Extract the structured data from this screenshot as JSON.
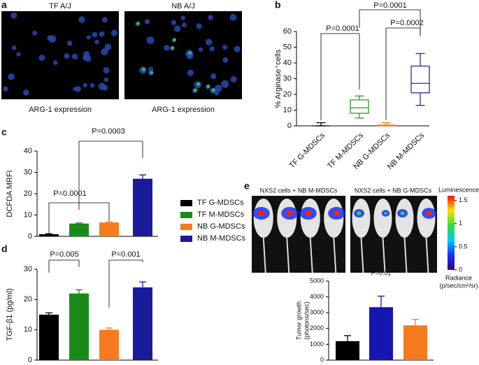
{
  "panel_labels": [
    "a",
    "b",
    "c",
    "d",
    "e"
  ],
  "panel_a": {
    "image_titles": [
      "TF A/J",
      "NB A/J"
    ],
    "captions": [
      "ARG-1 expression",
      "ARG-1 expression"
    ]
  },
  "panel_e": {
    "image_titles": [
      "NXS2 cells + NB M-MDSCs",
      "NXS2 cells + NB G-MDSCs"
    ],
    "colorbar": {
      "title": "Luminescence",
      "lim": [
        0,
        1.6
      ],
      "ticks": [
        0,
        0.5,
        1,
        1.5
      ],
      "label": "Radiance",
      "units": "(p/sec/cm²/sr)"
    }
  },
  "chart_data": [
    {
      "type": "box",
      "ylabel": "% Arginase⁺cells",
      "categories": [
        "TF G-MDSCs",
        "TF M-MDSCs",
        "NB G-MDSCs",
        "NB M-MDSCs"
      ],
      "colors": [
        "#000000",
        "#2a9a2a",
        "#f47b20",
        "#2b2b9b"
      ],
      "min": [
        0,
        5,
        0,
        13
      ],
      "q1": [
        0,
        8,
        0,
        21
      ],
      "median": [
        0,
        11.5,
        0,
        27
      ],
      "q3": [
        0,
        16.5,
        0.5,
        38
      ],
      "max": [
        2,
        19,
        2,
        46
      ],
      "ylim": [
        0,
        60
      ],
      "yticks": [
        0,
        10,
        20,
        30,
        40,
        50,
        60
      ],
      "annotations": [
        "P=0.0001",
        "P=0.0002",
        "P=0.0001"
      ]
    },
    {
      "type": "bar",
      "ylabel": "DCFDA MRFI",
      "categories": [
        "TF G-MDSCs",
        "TF M-MDSCs",
        "NB G-MDSCs",
        "NB M-MDSCs"
      ],
      "colors": [
        "#000000",
        "#1a8a1a",
        "#f47b20",
        "#1a1a9a"
      ],
      "values": [
        1,
        6,
        6.5,
        27
      ],
      "errors": [
        0.2,
        0.3,
        0.3,
        1.8
      ],
      "ylim": [
        0,
        40
      ],
      "yticks": [
        0,
        10,
        20,
        30,
        40
      ],
      "annotations": [
        "P=0.0001",
        "P=0.0003"
      ]
    },
    {
      "type": "bar",
      "ylabel": "TGF-β1 (pg/ml)",
      "categories": [
        null,
        null,
        null,
        null
      ],
      "colors": [
        "#000000",
        "#1a8a1a",
        "#f47b20",
        "#1a1a9a"
      ],
      "values": [
        15,
        22,
        10,
        24
      ],
      "errors": [
        0.6,
        1.2,
        0.6,
        1.8
      ],
      "ylim": [
        0,
        30
      ],
      "yticks": [
        0,
        10,
        20,
        30
      ],
      "annotations": [
        "P=0.005",
        "P=0.001"
      ]
    },
    {
      "type": "bar",
      "ylabel": [
        "Tumor growth",
        "(photons/sec)"
      ],
      "categories": [
        null,
        null,
        null
      ],
      "colors": [
        "#000000",
        "#1515b0",
        "#f47b20"
      ],
      "values": [
        1200,
        3350,
        2200
      ],
      "errors": [
        350,
        700,
        380
      ],
      "ylim": [
        0,
        5000
      ],
      "yticks": [
        0,
        1000,
        2000,
        3000,
        4000,
        5000
      ],
      "annotations": [
        "P=0.01"
      ]
    }
  ]
}
